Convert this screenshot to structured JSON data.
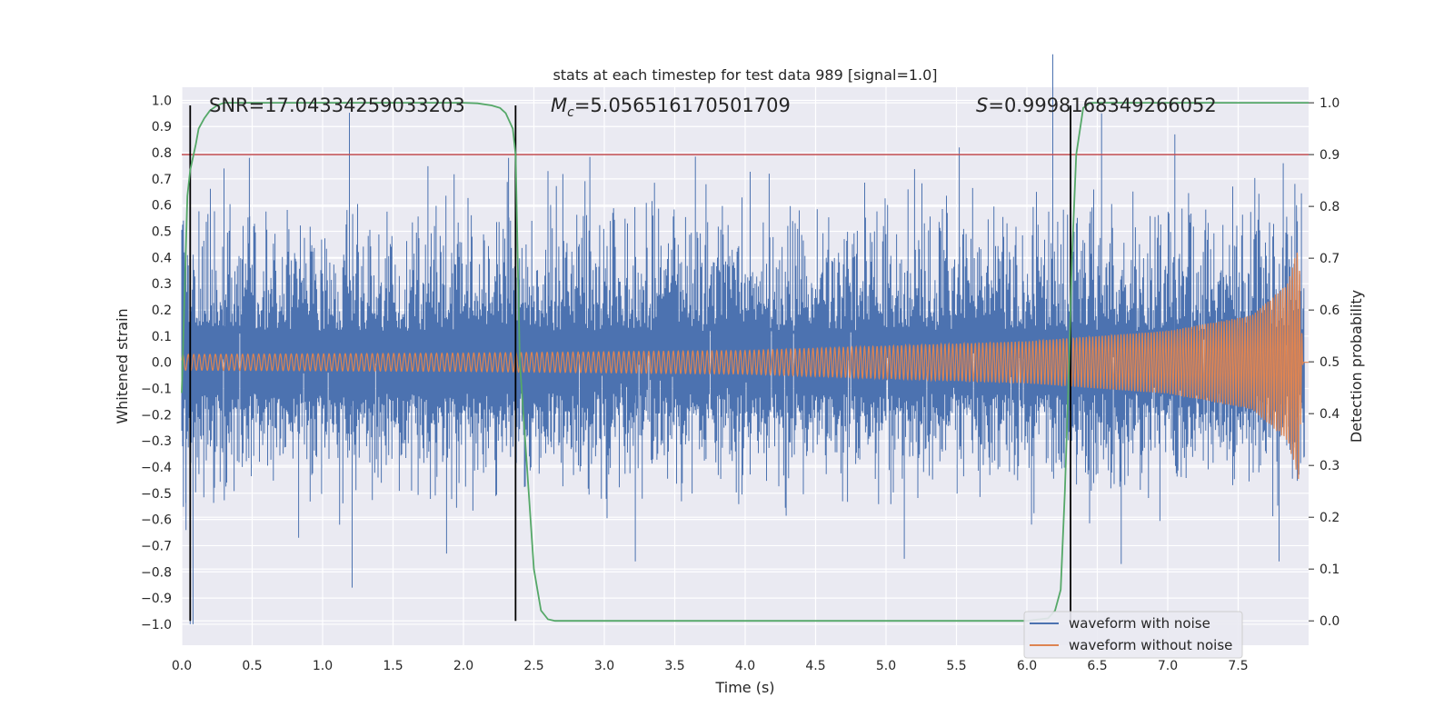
{
  "chart_data": {
    "type": "line",
    "title": "stats at each timestep for test data 989 [signal=1.0]",
    "xlabel": "Time (s)",
    "ylabel_left": "Whitened strain",
    "ylabel_right": "Detection probability",
    "xlim": [
      0,
      8
    ],
    "ylim_left": [
      -1.08,
      1.05
    ],
    "ylim_right": [
      -0.047,
      1.03
    ],
    "x_ticks": [
      0.0,
      0.5,
      1.0,
      1.5,
      2.0,
      2.5,
      3.0,
      3.5,
      4.0,
      4.5,
      5.0,
      5.5,
      6.0,
      6.5,
      7.0,
      7.5
    ],
    "x_tick_labels": [
      "0.0",
      "0.5",
      "1.0",
      "1.5",
      "2.0",
      "2.5",
      "3.0",
      "3.5",
      "4.0",
      "4.5",
      "5.0",
      "5.5",
      "6.0",
      "6.5",
      "7.0",
      "7.5"
    ],
    "y_left_ticks": [
      1.0,
      0.9,
      0.8,
      0.7,
      0.6,
      0.5,
      0.4,
      0.3,
      0.2,
      0.1,
      0.0,
      -0.1,
      -0.2,
      -0.3,
      -0.4,
      -0.5,
      -0.6,
      -0.7,
      -0.8,
      -0.9,
      -1.0
    ],
    "y_left_tick_labels": [
      "1.0",
      "0.9",
      "0.8",
      "0.7",
      "0.6",
      "0.5",
      "0.4",
      "0.3",
      "0.2",
      "0.1",
      "0.0",
      "−0.1",
      "−0.2",
      "−0.3",
      "−0.4",
      "−0.5",
      "−0.6",
      "−0.7",
      "−0.8",
      "−0.9",
      "−1.0"
    ],
    "y_right_ticks": [
      1.0,
      0.9,
      0.8,
      0.7,
      0.6,
      0.5,
      0.4,
      0.3,
      0.2,
      0.1,
      0.0
    ],
    "y_right_tick_labels": [
      "1.0",
      "0.9",
      "0.8",
      "0.7",
      "0.6",
      "0.5",
      "0.4",
      "0.3",
      "0.2",
      "0.1",
      "0.0"
    ],
    "annotations": {
      "snr": "SNR=17.04334259033203",
      "mc_symbol": "M",
      "mc_sub": "c",
      "mc_value": "=5.056516170501709",
      "s_symbol": "S",
      "s_value": "=0.9998168349266052"
    },
    "threshold": {
      "value": 0.9,
      "axis": "right",
      "color": "#c44e52"
    },
    "transition_lines_x": [
      0.06,
      2.37,
      6.31
    ],
    "series": [
      {
        "name": "waveform with noise",
        "color": "#4c72b0",
        "axis": "left",
        "x_range": [
          0,
          7.97
        ],
        "typical_envelope": [
          -0.4,
          0.6
        ],
        "extremes": [
          {
            "x": 0.03,
            "y": -0.64
          },
          {
            "x": 0.06,
            "y": -1.0
          },
          {
            "x": 0.08,
            "y": -1.0
          },
          {
            "x": 0.3,
            "y": 0.74
          },
          {
            "x": 0.48,
            "y": 0.78
          },
          {
            "x": 0.83,
            "y": -0.67
          },
          {
            "x": 1.21,
            "y": -0.86
          },
          {
            "x": 1.88,
            "y": -0.73
          },
          {
            "x": 2.32,
            "y": 0.78
          },
          {
            "x": 2.6,
            "y": 0.73
          },
          {
            "x": 3.22,
            "y": -0.76
          },
          {
            "x": 4.17,
            "y": 0.72
          },
          {
            "x": 5.13,
            "y": -0.75
          },
          {
            "x": 5.52,
            "y": 0.82
          },
          {
            "x": 6.53,
            "y": 0.95
          },
          {
            "x": 6.67,
            "y": -0.77
          },
          {
            "x": 7.05,
            "y": 0.87
          },
          {
            "x": 7.82,
            "y": 0.76
          },
          {
            "x": 7.79,
            "y": -0.76
          },
          {
            "x": 7.97,
            "y": -0.36
          }
        ]
      },
      {
        "name": "waveform without noise",
        "color": "#dd8452",
        "axis": "left",
        "x_range": [
          0,
          8.0
        ],
        "amplitude_points": [
          [
            0.0,
            0.03
          ],
          [
            2.0,
            0.035
          ],
          [
            4.0,
            0.045
          ],
          [
            6.0,
            0.08
          ],
          [
            7.0,
            0.12
          ],
          [
            7.6,
            0.18
          ],
          [
            7.85,
            0.3
          ],
          [
            7.93,
            0.45
          ],
          [
            7.96,
            0.0
          ]
        ],
        "chirp_freq_hz": {
          "start": 26,
          "end": 60
        }
      },
      {
        "name": "detection probability",
        "color": "#55a868",
        "axis": "right",
        "x": [
          0.0,
          0.04,
          0.06,
          0.1,
          0.12,
          0.16,
          0.2,
          0.25,
          0.3,
          0.4,
          0.5,
          1.0,
          1.5,
          2.0,
          2.1,
          2.2,
          2.26,
          2.3,
          2.35,
          2.37,
          2.4,
          2.45,
          2.5,
          2.55,
          2.6,
          2.65,
          3.0,
          4.0,
          5.0,
          6.0,
          6.15,
          6.2,
          6.24,
          6.27,
          6.3,
          6.32,
          6.35,
          6.4,
          6.45,
          6.5,
          7.0,
          7.5,
          8.0
        ],
        "values": [
          0.44,
          0.82,
          0.87,
          0.92,
          0.95,
          0.97,
          0.985,
          0.995,
          1.0,
          1.0,
          1.0,
          1.0,
          1.0,
          1.0,
          0.999,
          0.995,
          0.99,
          0.98,
          0.95,
          0.9,
          0.5,
          0.3,
          0.1,
          0.02,
          0.003,
          0.0,
          0.0,
          0.0,
          0.0,
          0.0,
          0.005,
          0.02,
          0.06,
          0.25,
          0.5,
          0.7,
          0.9,
          0.99,
          1.0,
          1.0,
          1.0,
          1.0,
          1.0
        ]
      }
    ],
    "legend": {
      "position": "lower-right",
      "entries": [
        "waveform with noise",
        "waveform without noise"
      ]
    },
    "colors": {
      "plot_background": "#eaeaf2",
      "grid": "#ffffff",
      "axis_text": "#262626",
      "vertical_lines": "#000000"
    },
    "grid": true
  }
}
